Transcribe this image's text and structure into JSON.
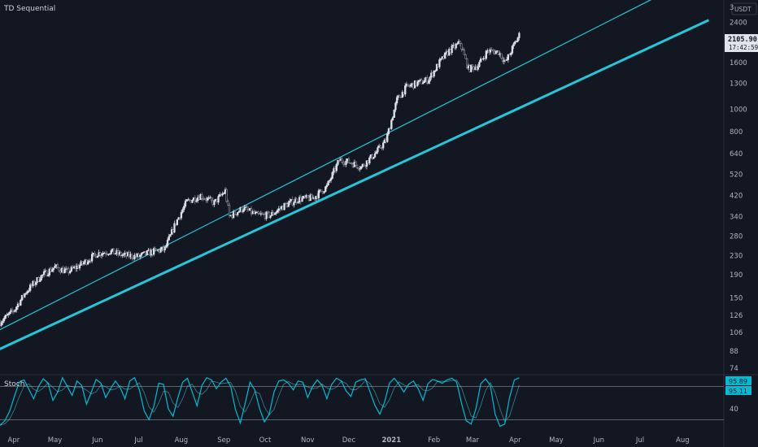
{
  "chart_data": [
    {
      "type": "candlestick",
      "title": "TD Sequential",
      "currency": "USDT",
      "scale": "log",
      "ylim": [
        70,
        3000
      ],
      "y_ticks": [
        74,
        88,
        106,
        126,
        150,
        190,
        230,
        280,
        340,
        420,
        520,
        640,
        800,
        1000,
        1300,
        1600,
        2400
      ],
      "y_top_partial": "3",
      "x_ticks": [
        "Apr",
        "May",
        "Jun",
        "Jul",
        "Aug",
        "Sep",
        "Oct",
        "Nov",
        "Dec",
        "2021",
        "Feb",
        "Mar",
        "Apr",
        "May",
        "Jun",
        "Jul",
        "Aug"
      ],
      "last_price": "2105.90",
      "countdown": "17:42:59",
      "price_path": [
        [
          "2020-03-22",
          118
        ],
        [
          "2020-04-01",
          132
        ],
        [
          "2020-04-10",
          160
        ],
        [
          "2020-04-20",
          185
        ],
        [
          "2020-05-01",
          205
        ],
        [
          "2020-05-10",
          195
        ],
        [
          "2020-05-20",
          210
        ],
        [
          "2020-06-01",
          235
        ],
        [
          "2020-06-10",
          240
        ],
        [
          "2020-06-20",
          230
        ],
        [
          "2020-07-01",
          228
        ],
        [
          "2020-07-10",
          238
        ],
        [
          "2020-07-20",
          245
        ],
        [
          "2020-07-28",
          320
        ],
        [
          "2020-08-05",
          395
        ],
        [
          "2020-08-15",
          420
        ],
        [
          "2020-08-25",
          390
        ],
        [
          "2020-09-02",
          440
        ],
        [
          "2020-09-05",
          340
        ],
        [
          "2020-09-15",
          370
        ],
        [
          "2020-09-25",
          345
        ],
        [
          "2020-10-05",
          345
        ],
        [
          "2020-10-15",
          380
        ],
        [
          "2020-10-25",
          405
        ],
        [
          "2020-11-05",
          410
        ],
        [
          "2020-11-15",
          460
        ],
        [
          "2020-11-24",
          600
        ],
        [
          "2020-12-01",
          590
        ],
        [
          "2020-12-10",
          560
        ],
        [
          "2020-12-20",
          640
        ],
        [
          "2020-12-28",
          730
        ],
        [
          "2021-01-05",
          1100
        ],
        [
          "2021-01-12",
          1250
        ],
        [
          "2021-01-20",
          1300
        ],
        [
          "2021-01-28",
          1350
        ],
        [
          "2021-02-05",
          1600
        ],
        [
          "2021-02-12",
          1800
        ],
        [
          "2021-02-20",
          1950
        ],
        [
          "2021-02-26",
          1500
        ],
        [
          "2021-03-05",
          1550
        ],
        [
          "2021-03-12",
          1800
        ],
        [
          "2021-03-20",
          1780
        ],
        [
          "2021-03-25",
          1600
        ],
        [
          "2021-04-01",
          1950
        ],
        [
          "2021-04-04",
          2105.9
        ]
      ],
      "trendlines": [
        {
          "style": "thick",
          "color": "#26c6da",
          "from": [
            "2020-03-15",
            86
          ],
          "to": [
            "2021-08-20",
            2450
          ]
        },
        {
          "style": "thin",
          "color": "#26c6da",
          "from": [
            "2020-03-15",
            104
          ],
          "to": [
            "2021-07-20",
            3250
          ]
        }
      ]
    },
    {
      "type": "line",
      "title": "Stoch",
      "color": "#00bcd4",
      "ylim": [
        0,
        100
      ],
      "levels": [
        20,
        80
      ],
      "y_ticks": [
        40
      ],
      "last_values": [
        "95.89",
        "95.11"
      ],
      "k": [
        10,
        18,
        35,
        62,
        88,
        92,
        75,
        58,
        80,
        94,
        86,
        55,
        70,
        96,
        80,
        64,
        90,
        82,
        48,
        70,
        93,
        86,
        60,
        76,
        90,
        78,
        58,
        90,
        96,
        74,
        36,
        20,
        44,
        86,
        84,
        40,
        26,
        60,
        88,
        95,
        70,
        45,
        82,
        96,
        92,
        76,
        88,
        95,
        80,
        38,
        14,
        50,
        88,
        74,
        40,
        16,
        30,
        70,
        90,
        92,
        86,
        74,
        90,
        88,
        60,
        80,
        92,
        82,
        58,
        84,
        95,
        90,
        72,
        62,
        88,
        92,
        94,
        70,
        46,
        30,
        52,
        86,
        95,
        84,
        70,
        84,
        90,
        76,
        55,
        85,
        93,
        90,
        86,
        92,
        95,
        88,
        50,
        18,
        12,
        40,
        85,
        94,
        82,
        30,
        8,
        12,
        60,
        92,
        95.89
      ]
    }
  ]
}
